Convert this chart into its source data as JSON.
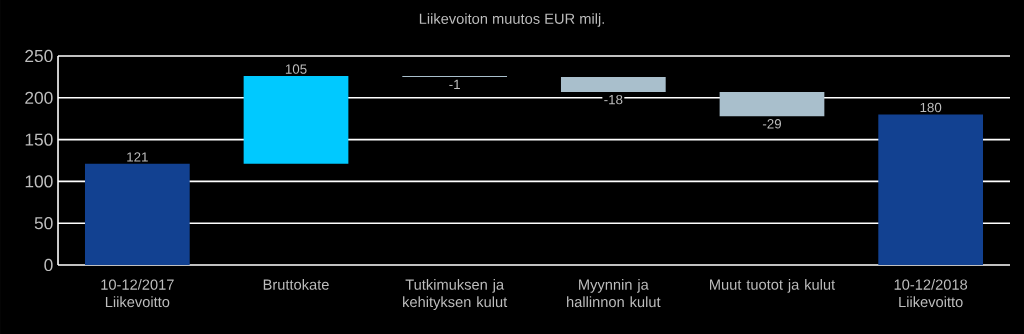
{
  "chart_data": {
    "type": "bar",
    "title": "Liikevoiton muutos EUR milj.",
    "categories": [
      "10-12/2017 Liikevoitto",
      "Bruttokate",
      "Tutkimuksen ja kehityksen kulut",
      "Myynnin ja hallinnon kulut",
      "Muut tuotot ja kulut",
      "10-12/2018 Liikevoitto"
    ],
    "values": [
      121,
      105,
      -1,
      -18,
      -29,
      180
    ],
    "base": [
      0,
      121,
      226,
      225,
      207,
      0
    ],
    "colors": [
      "#124191",
      "#00c9ff",
      "#a9bfcc",
      "#a9bfcc",
      "#a9bfcc",
      "#124191"
    ],
    "ylim": [
      0,
      250
    ],
    "yticks": [
      0,
      50,
      100,
      150,
      200,
      250
    ],
    "grid": "y",
    "data_labels": true
  }
}
